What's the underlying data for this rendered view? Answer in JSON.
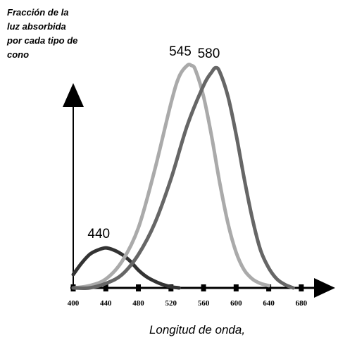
{
  "chart_data": {
    "type": "line",
    "ylabel_lines": [
      "Fracción de la",
      "luz absorbida",
      "por cada tipo de",
      "cono"
    ],
    "xlabel": "Longitud de onda,",
    "x_ticks": [
      400,
      440,
      480,
      520,
      560,
      600,
      640,
      680
    ],
    "xlim": [
      400,
      700
    ],
    "ylim": [
      0,
      1
    ],
    "grid": false,
    "series": [
      {
        "name": "440",
        "color": "#333333",
        "x": [
          400,
          410,
          420,
          430,
          440,
          450,
          460,
          470,
          480,
          490,
          500,
          510,
          520,
          530
        ],
        "values": [
          0.06,
          0.11,
          0.15,
          0.17,
          0.18,
          0.17,
          0.15,
          0.12,
          0.08,
          0.05,
          0.03,
          0.015,
          0.005,
          0.0
        ]
      },
      {
        "name": "545",
        "color": "#aaaaaa",
        "x": [
          400,
          420,
          440,
          460,
          480,
          500,
          520,
          530,
          540,
          545,
          550,
          560,
          570,
          580,
          590,
          600,
          610,
          620,
          630,
          640
        ],
        "values": [
          0.0,
          0.01,
          0.04,
          0.12,
          0.27,
          0.53,
          0.83,
          0.95,
          1.0,
          1.0,
          0.98,
          0.86,
          0.68,
          0.47,
          0.29,
          0.16,
          0.08,
          0.04,
          0.02,
          0.01
        ]
      },
      {
        "name": "580",
        "color": "#666666",
        "x": [
          400,
          420,
          440,
          460,
          480,
          500,
          520,
          540,
          560,
          570,
          575,
          580,
          590,
          600,
          610,
          620,
          630,
          640,
          650,
          660,
          670
        ],
        "values": [
          0.0,
          0.0,
          0.02,
          0.06,
          0.15,
          0.29,
          0.49,
          0.73,
          0.91,
          0.97,
          0.99,
          0.97,
          0.86,
          0.69,
          0.49,
          0.31,
          0.17,
          0.09,
          0.04,
          0.015,
          0.0
        ]
      }
    ]
  }
}
